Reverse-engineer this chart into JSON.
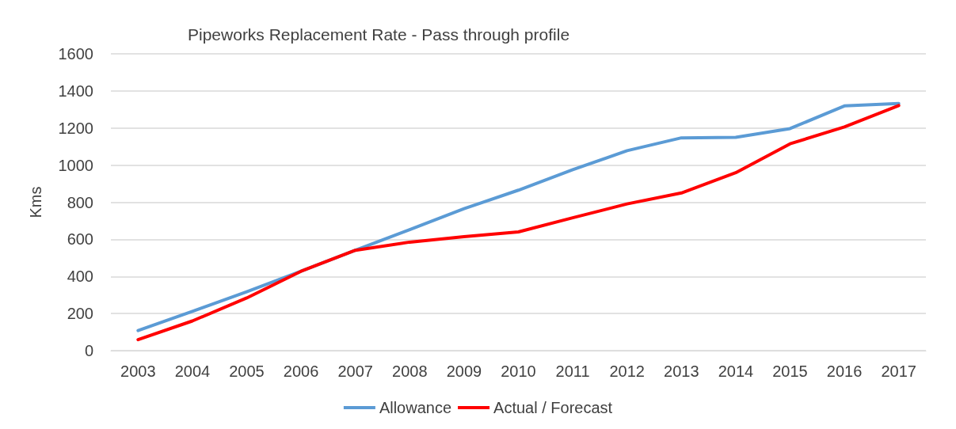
{
  "chart_data": {
    "type": "line",
    "title": "Pipeworks Replacement Rate - Pass through profile",
    "ylabel": "Kms",
    "categories": [
      "2003",
      "2004",
      "2005",
      "2006",
      "2007",
      "2008",
      "2009",
      "2010",
      "2011",
      "2012",
      "2013",
      "2014",
      "2015",
      "2016",
      "2017"
    ],
    "series": [
      {
        "name": "Allowance",
        "color": "#5b9bd5",
        "values": [
          108,
          212,
          317,
          428,
          541,
          652,
          765,
          865,
          975,
          1078,
          1147,
          1150,
          1197,
          1319,
          1332
        ]
      },
      {
        "name": "Actual / Forecast",
        "color": "#ff0000",
        "values": [
          59,
          160,
          284,
          428,
          541,
          585,
          614,
          640,
          716,
          791,
          850,
          959,
          1115,
          1206,
          1321
        ]
      }
    ],
    "ylim": [
      0,
      1600
    ],
    "yticks": [
      0,
      200,
      400,
      600,
      800,
      1000,
      1200,
      1400,
      1600
    ],
    "grid": "y",
    "legend": "bottom",
    "marker": "none",
    "line_style": "solid"
  }
}
